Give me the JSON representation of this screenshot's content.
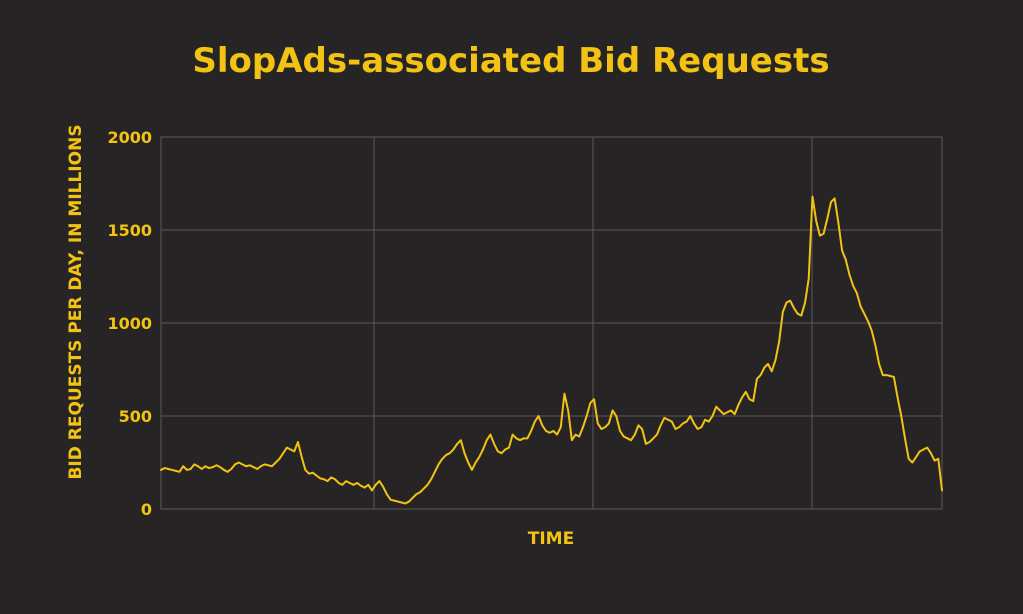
{
  "colors": {
    "background": "#262424",
    "accent": "#F2C314",
    "grid": "#5A5858"
  },
  "chart_data": {
    "type": "line",
    "title": "SlopAds-associated Bid Requests",
    "xlabel": "TIME",
    "ylabel": "BID REQUESTS PER DAY, IN MILLIONS",
    "ylim": [
      0,
      2000
    ],
    "yticks": [
      "0",
      "500",
      "1000",
      "1500",
      "2000"
    ],
    "grid": true,
    "series": [
      {
        "values": [
          210,
          220,
          215,
          210,
          205,
          200,
          230,
          210,
          215,
          240,
          230,
          215,
          230,
          220,
          225,
          235,
          225,
          210,
          200,
          215,
          240,
          250,
          240,
          230,
          235,
          225,
          215,
          230,
          240,
          235,
          230,
          250,
          270,
          300,
          330,
          320,
          310,
          360,
          280,
          210,
          190,
          195,
          180,
          165,
          160,
          150,
          170,
          160,
          140,
          130,
          150,
          140,
          130,
          140,
          125,
          115,
          130,
          100,
          130,
          150,
          120,
          80,
          50,
          45,
          40,
          35,
          30,
          40,
          60,
          80,
          90,
          110,
          130,
          160,
          200,
          240,
          270,
          290,
          300,
          320,
          350,
          370,
          300,
          250,
          210,
          250,
          280,
          320,
          370,
          400,
          350,
          310,
          300,
          320,
          330,
          400,
          380,
          370,
          380,
          380,
          420,
          470,
          500,
          450,
          420,
          410,
          420,
          400,
          440,
          620,
          530,
          370,
          400,
          390,
          440,
          500,
          570,
          590,
          460,
          430,
          440,
          460,
          530,
          500,
          420,
          390,
          380,
          370,
          400,
          450,
          430,
          350,
          360,
          380,
          400,
          450,
          490,
          480,
          470,
          430,
          440,
          460,
          470,
          500,
          460,
          430,
          440,
          480,
          470,
          500,
          550,
          530,
          510,
          520,
          530,
          510,
          560,
          600,
          630,
          590,
          580,
          700,
          720,
          760,
          780,
          740,
          800,
          900,
          1060,
          1110,
          1120,
          1080,
          1050,
          1040,
          1110,
          1240,
          1680,
          1550,
          1470,
          1480,
          1560,
          1650,
          1670,
          1540,
          1390,
          1340,
          1260,
          1200,
          1160,
          1090,
          1050,
          1010,
          960,
          880,
          780,
          720,
          720,
          715,
          710,
          600,
          500,
          380,
          270,
          250,
          280,
          310,
          320,
          330,
          300,
          260,
          270,
          100
        ]
      }
    ]
  }
}
